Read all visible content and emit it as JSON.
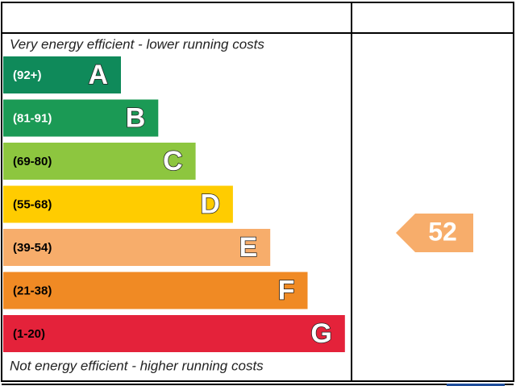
{
  "top_text": "Very energy efficient - lower running costs",
  "bottom_text": "Not energy efficient - higher running costs",
  "bands": [
    {
      "range": "(92+)",
      "letter": "A",
      "color": "#0f8a5a",
      "text_color": "#ffffff"
    },
    {
      "range": "(81-91)",
      "letter": "B",
      "color": "#1b9a55",
      "text_color": "#ffffff"
    },
    {
      "range": "(69-80)",
      "letter": "C",
      "color": "#8dc63f",
      "text_color": "#000000"
    },
    {
      "range": "(55-68)",
      "letter": "D",
      "color": "#ffcc00",
      "text_color": "#000000"
    },
    {
      "range": "(39-54)",
      "letter": "E",
      "color": "#f7ad6b",
      "text_color": "#000000"
    },
    {
      "range": "(21-38)",
      "letter": "F",
      "color": "#f08a24",
      "text_color": "#000000"
    },
    {
      "range": "(1-20)",
      "letter": "G",
      "color": "#e4223a",
      "text_color": "#000000"
    }
  ],
  "current_rating": {
    "value": 52,
    "color": "#f7ad6b"
  }
}
